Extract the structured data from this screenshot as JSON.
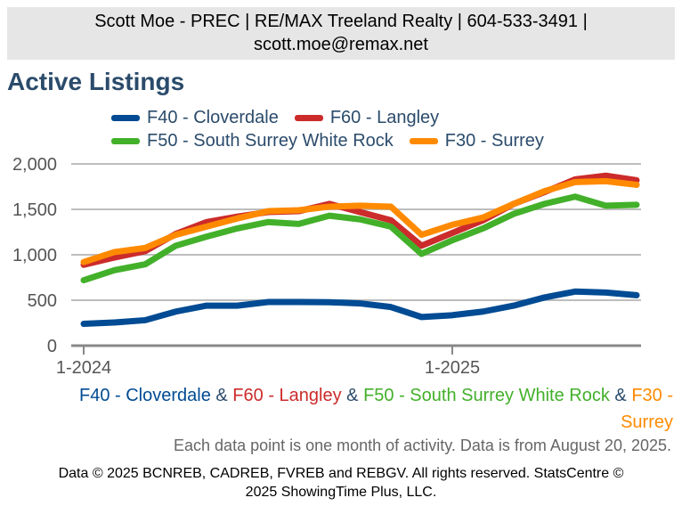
{
  "header": {
    "line1": "Scott Moe - PREC | RE/MAX Treeland Realty | 604-533-3491 |",
    "line2": "scott.moe@remax.net"
  },
  "title": "Active Listings",
  "colors": {
    "title": "#2b4b6b",
    "grid": "#bdbdbd",
    "axis": "#888888",
    "amp": "#2b4b6b"
  },
  "caption": {
    "amp": "&"
  },
  "note": "Each data point is one month of activity. Data is from August 20, 2025.",
  "footer": {
    "line1": "Data © 2025 BCNREB, CADREB, FVREB and REBGV. All rights reserved. StatsCentre ©",
    "line2": "2025 ShowingTime Plus, LLC."
  },
  "chart_data": {
    "type": "line",
    "ylim": [
      0,
      2000
    ],
    "yticks": [
      "0",
      "500",
      "1,000",
      "1,500",
      "2,000"
    ],
    "xtick_labels": [
      "1-2024",
      "1-2025"
    ],
    "x": [
      "2024-01",
      "2024-02",
      "2024-03",
      "2024-04",
      "2024-05",
      "2024-06",
      "2024-07",
      "2024-08",
      "2024-09",
      "2024-10",
      "2024-11",
      "2024-12",
      "2025-01",
      "2025-02",
      "2025-03",
      "2025-04",
      "2025-05",
      "2025-06",
      "2025-07"
    ],
    "grid": true,
    "series": [
      {
        "name": "F40 - Cloverdale",
        "color": "#004b93",
        "values": [
          240,
          255,
          280,
          375,
          440,
          440,
          480,
          480,
          478,
          465,
          425,
          315,
          335,
          375,
          440,
          530,
          595,
          585,
          555
        ]
      },
      {
        "name": "F60 - Langley",
        "color": "#cc2b2b",
        "values": [
          890,
          970,
          1040,
          1230,
          1360,
          1420,
          1470,
          1480,
          1560,
          1470,
          1380,
          1100,
          1240,
          1380,
          1560,
          1690,
          1830,
          1870,
          1820
        ]
      },
      {
        "name": "F50 - South Surrey White Rock",
        "color": "#43b02a",
        "values": [
          720,
          830,
          895,
          1100,
          1200,
          1290,
          1360,
          1340,
          1430,
          1390,
          1310,
          1010,
          1160,
          1290,
          1450,
          1560,
          1640,
          1540,
          1550
        ]
      },
      {
        "name": "F30 - Surrey",
        "color": "#ff8a00",
        "values": [
          920,
          1030,
          1075,
          1220,
          1310,
          1400,
          1480,
          1490,
          1530,
          1540,
          1530,
          1220,
          1330,
          1410,
          1560,
          1700,
          1800,
          1810,
          1770
        ]
      }
    ]
  }
}
